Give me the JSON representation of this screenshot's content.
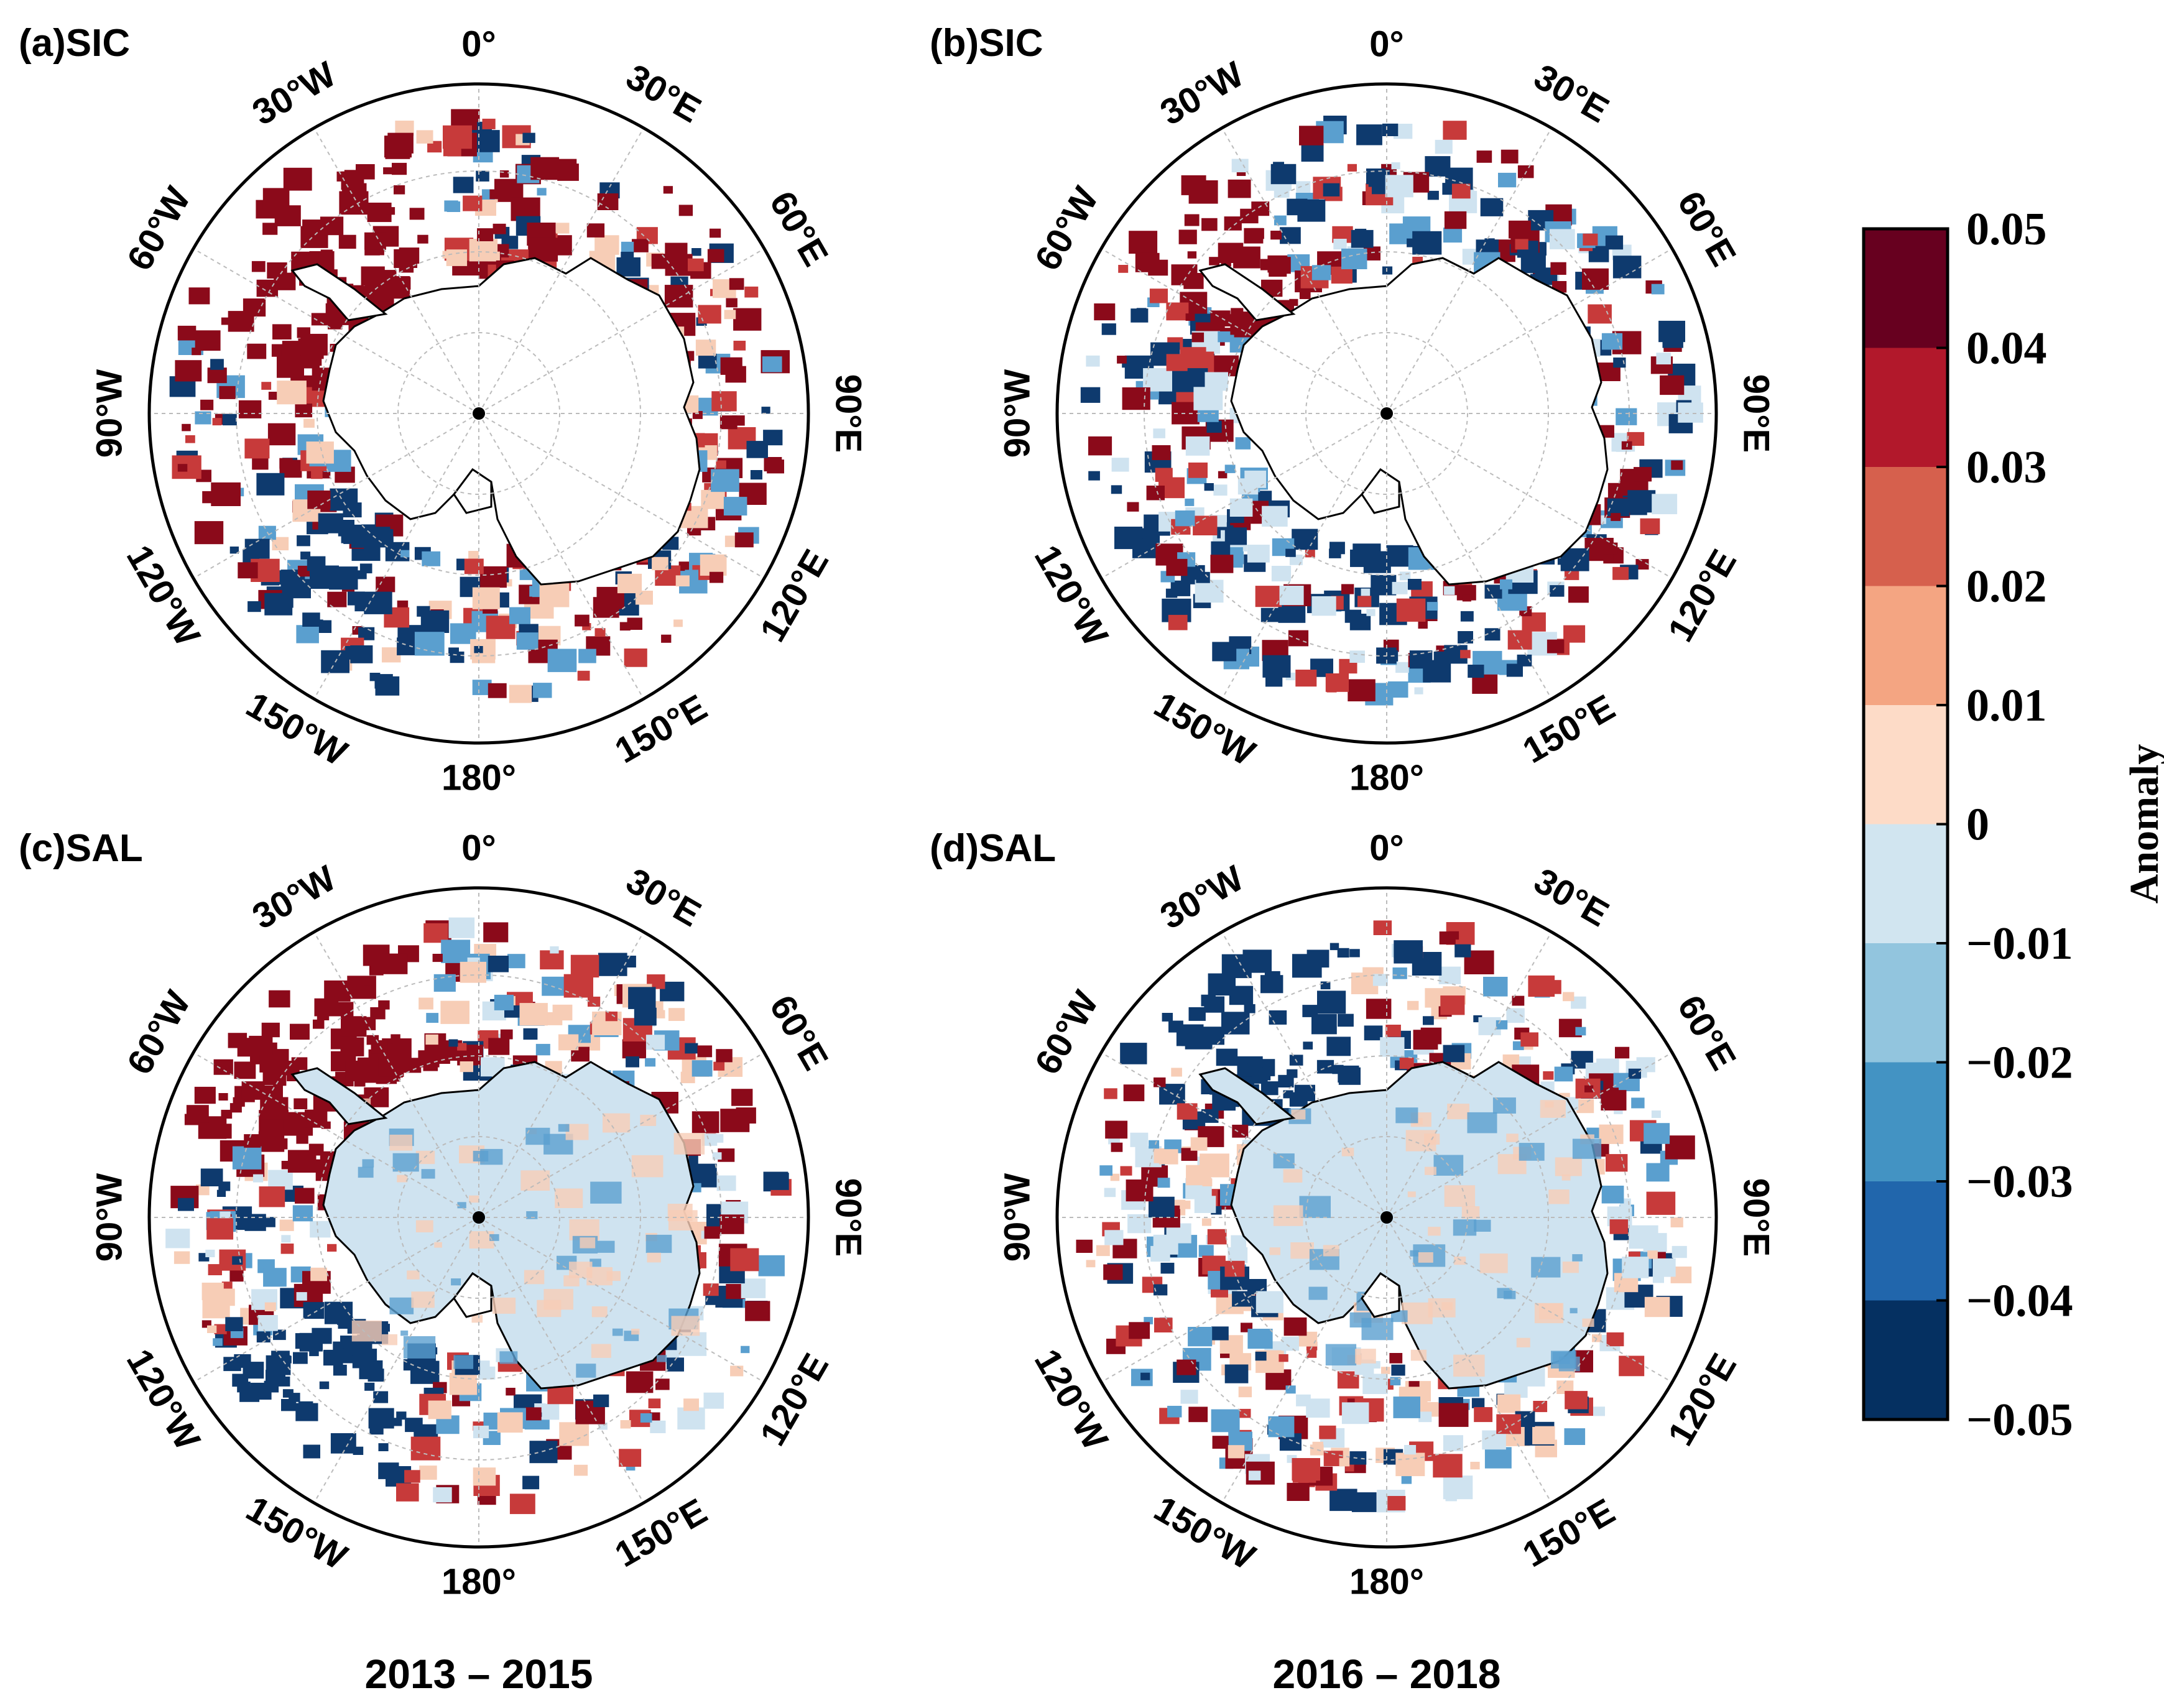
{
  "panels": [
    {
      "id": "a",
      "label": "(a)SIC",
      "variable": "SIC",
      "period": "2013 – 2015"
    },
    {
      "id": "b",
      "label": "(b)SIC",
      "variable": "SIC",
      "period": "2016 – 2018"
    },
    {
      "id": "c",
      "label": "(c)SAL",
      "variable": "SAL",
      "period": "2013 – 2015"
    },
    {
      "id": "d",
      "label": "(d)SAL",
      "variable": "SAL",
      "period": "2016 – 2018"
    }
  ],
  "longitude_labels": [
    "0°",
    "30°E",
    "60°E",
    "90°E",
    "120°E",
    "150°E",
    "180°",
    "150°W",
    "120°W",
    "90°W",
    "60°W",
    "30°W"
  ],
  "periods": {
    "left": "2013 – 2015",
    "right": "2016 – 2018"
  },
  "colorbar": {
    "title": "Anomaly",
    "ticks": [
      "0.05",
      "0.04",
      "0.03",
      "0.02",
      "0.01",
      "0",
      "−0.01",
      "−0.02",
      "−0.03",
      "−0.04",
      "−0.05"
    ],
    "colors": [
      "#67001f",
      "#b2182b",
      "#d6604d",
      "#f4a582",
      "#fddbc7",
      "#d1e5f0",
      "#92c5de",
      "#4393c3",
      "#2166ac",
      "#053061"
    ]
  },
  "palette": {
    "pos_strong": "#8b0a1a",
    "pos_mid": "#c73a3a",
    "pos_weak": "#f7cdb6",
    "neg_weak": "#cfe3f0",
    "neg_mid": "#5a9fcf",
    "neg_strong": "#0e3a6e",
    "land_outline": "#000000",
    "frame": "#000000"
  }
}
